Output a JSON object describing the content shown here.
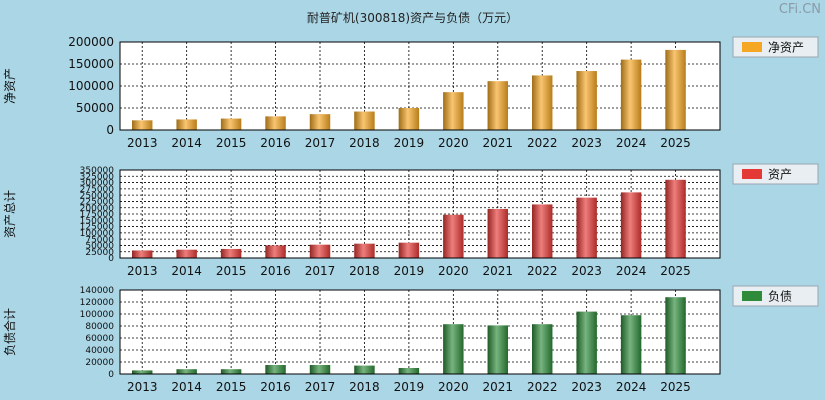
{
  "title": "耐普矿机(300818)资产与负债（万元）",
  "watermark": "CFi.CN",
  "colors": {
    "background": "#abd6e6",
    "plot_bg": "#ffffff",
    "grid": "#000000",
    "orange": "#f5a623",
    "red": "#e53935",
    "green": "#2e8b3a"
  },
  "chart_data": [
    {
      "type": "bar",
      "ylabel": "净资产",
      "legend": "净资产",
      "color_key": "orange",
      "categories": [
        "2013",
        "2014",
        "2015",
        "2016",
        "2017",
        "2018",
        "2019",
        "2020",
        "2021",
        "2022",
        "2023",
        "2024",
        "2025"
      ],
      "values": [
        22000,
        24000,
        26000,
        31000,
        36000,
        42000,
        50000,
        86000,
        111000,
        124000,
        134000,
        160000,
        182000
      ],
      "ylim": [
        0,
        200000
      ],
      "yticks": [
        0,
        50000,
        100000,
        150000,
        200000
      ]
    },
    {
      "type": "bar",
      "ylabel": "资产总计",
      "legend": "资产",
      "color_key": "red",
      "categories": [
        "2013",
        "2014",
        "2015",
        "2016",
        "2017",
        "2018",
        "2019",
        "2020",
        "2021",
        "2022",
        "2023",
        "2024",
        "2025"
      ],
      "values": [
        30000,
        33000,
        36000,
        50000,
        53000,
        57000,
        61000,
        172000,
        195000,
        213000,
        240000,
        261000,
        311000
      ],
      "ylim": [
        0,
        350000
      ],
      "yticks": [
        0,
        25000,
        50000,
        75000,
        100000,
        125000,
        150000,
        175000,
        200000,
        225000,
        250000,
        275000,
        300000,
        325000,
        350000
      ]
    },
    {
      "type": "bar",
      "ylabel": "负债合计",
      "legend": "负债",
      "color_key": "green",
      "categories": [
        "2013",
        "2014",
        "2015",
        "2016",
        "2017",
        "2018",
        "2019",
        "2020",
        "2021",
        "2022",
        "2023",
        "2024",
        "2025"
      ],
      "values": [
        6000,
        8000,
        8000,
        15000,
        15000,
        14000,
        10000,
        83000,
        81000,
        83000,
        104000,
        98000,
        128000
      ],
      "ylim": [
        0,
        140000
      ],
      "yticks": [
        0,
        20000,
        40000,
        60000,
        80000,
        100000,
        120000,
        140000
      ]
    }
  ]
}
